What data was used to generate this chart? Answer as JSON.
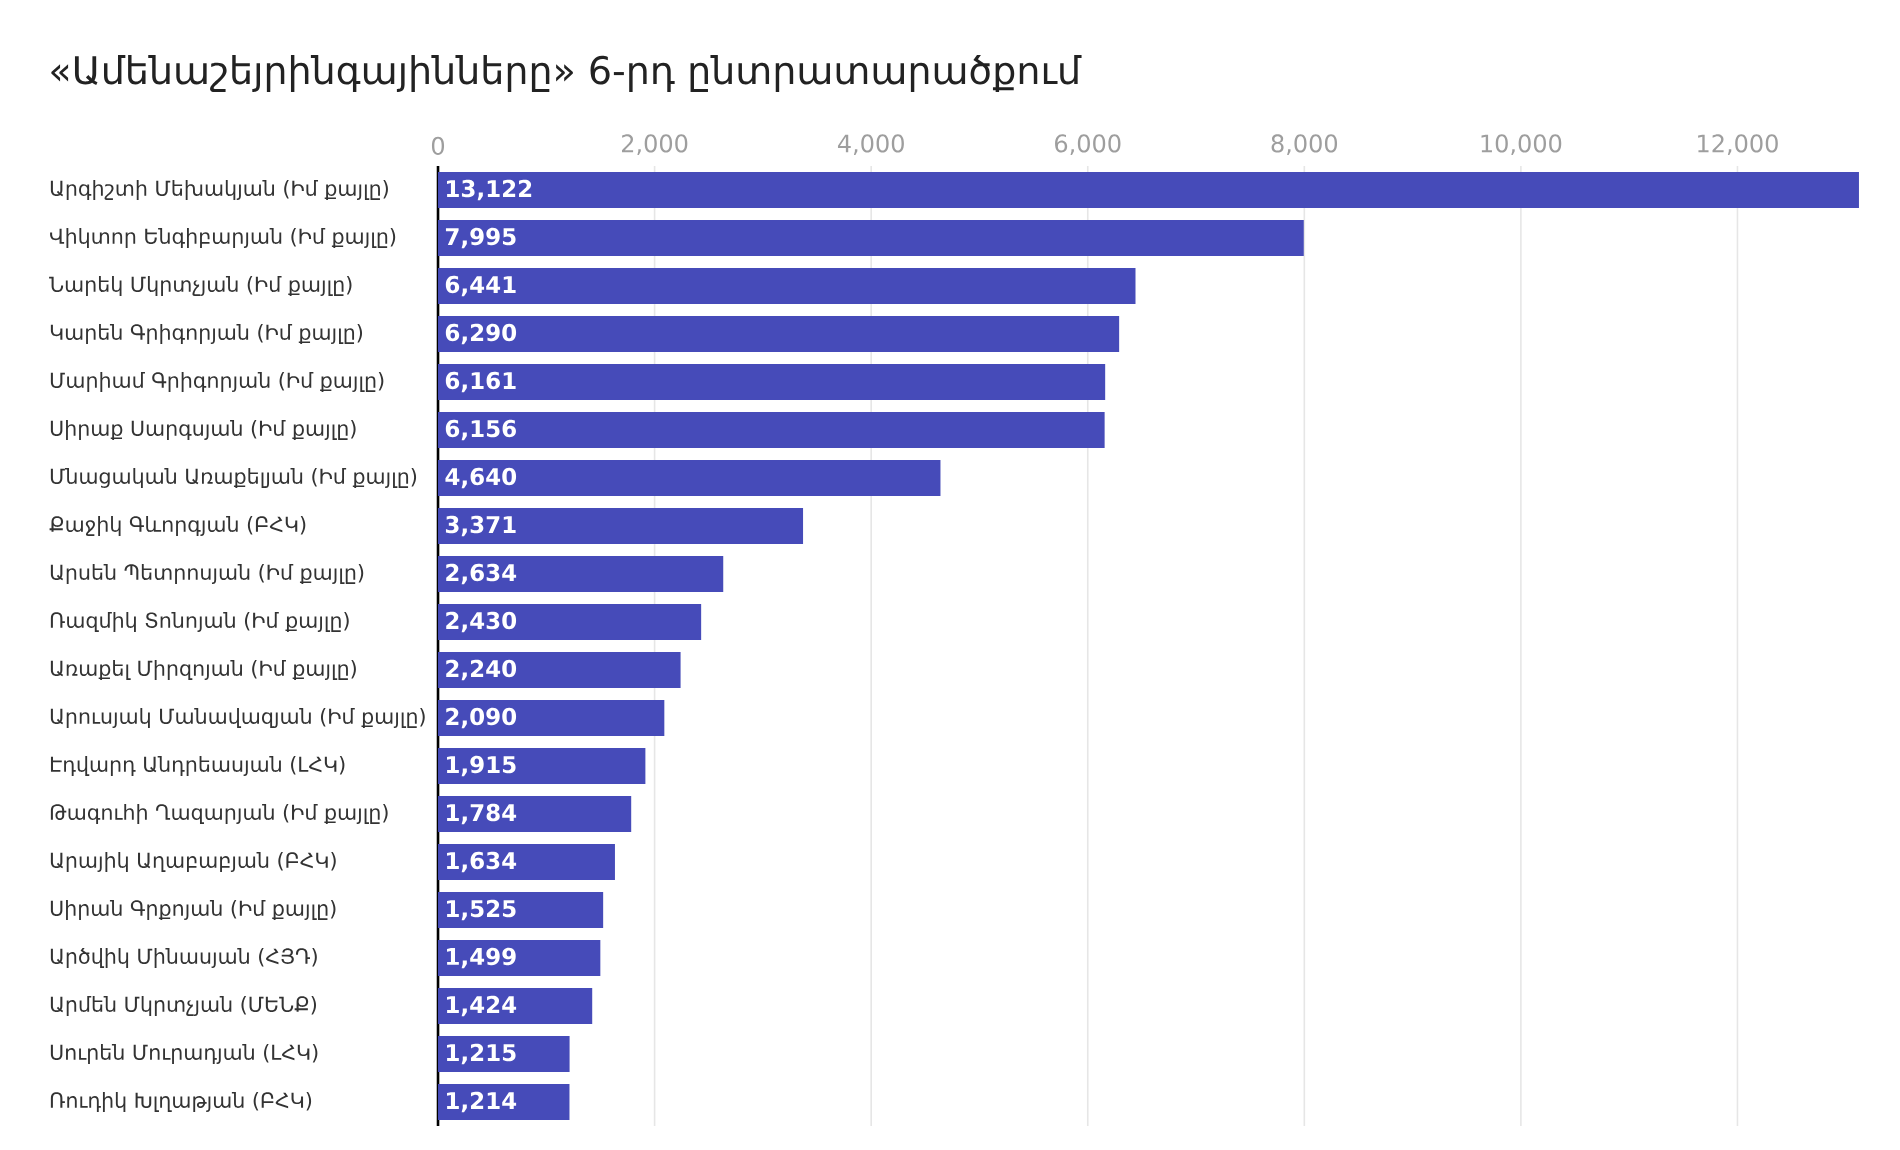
{
  "chart_data": {
    "type": "bar",
    "orientation": "horizontal",
    "title": "«Ամենաշեյրինգայինները» 6-րդ ընտրատարածքում",
    "categories": [
      "Արգիշտի Մեխակյան (Իմ քայլը)",
      "Վիկտոր Ենգիբարյան (Իմ քայլը)",
      "Նարեկ Մկրտչյան (Իմ քայլը)",
      "Կարեն Գրիգորյան (Իմ քայլը)",
      "Մարիամ Գրիգորյան (Իմ քայլը)",
      "Սիրաք Սարգսյան (Իմ քայլը)",
      "Մնացական Առաքելյան (Իմ քայլը)",
      "Քաջիկ Գևորգյան (ԲՀԿ)",
      "Արսեն Պետրոսյան (Իմ քայլը)",
      "Ռազմիկ Տոնոյան (Իմ քայլը)",
      "Առաքել Միրզոյան (Իմ քայլը)",
      "Արուսյակ Մանավազյան (Իմ քայլը)",
      "Էդվարդ Անդրեասյան (ԼՀԿ)",
      "Թագուհի Ղազարյան (Իմ քայլը)",
      "Արայիկ Աղաբաբյան (ԲՀԿ)",
      "Սիրան Գրքոյան (Իմ քայլը)",
      "Արծվիկ Մինասյան (ՀՅԴ)",
      "Արմեն Մկրտչյան (ՄԵՆՔ)",
      "Սուրեն Մուրադյան (ԼՀԿ)",
      "Ռուդիկ Խլղաթյան (ԲՀԿ)"
    ],
    "values": [
      13122,
      7995,
      6441,
      6290,
      6161,
      6156,
      4640,
      3371,
      2634,
      2430,
      2240,
      2090,
      1915,
      1784,
      1634,
      1525,
      1499,
      1424,
      1215,
      1214
    ],
    "value_labels": [
      "13,122",
      "7,995",
      "6,441",
      "6,290",
      "6,161",
      "6,156",
      "4,640",
      "3,371",
      "2,634",
      "2,430",
      "2,240",
      "2,090",
      "1,915",
      "1,784",
      "1,634",
      "1,525",
      "1,499",
      "1,424",
      "1,215",
      "1,214"
    ],
    "color": "#464bb9",
    "xlim": [
      0,
      13150
    ],
    "xticks": [
      0,
      {
        "value": 2000,
        "label": "2,000"
      },
      {
        "value": 4000,
        "label": "4,000"
      },
      {
        "value": 6000,
        "label": "6,000"
      },
      {
        "value": 8000,
        "label": "8,000"
      },
      {
        "value": 10000,
        "label": "10,000"
      },
      {
        "value": 12000,
        "label": "12,000"
      }
    ],
    "grid": "x"
  }
}
